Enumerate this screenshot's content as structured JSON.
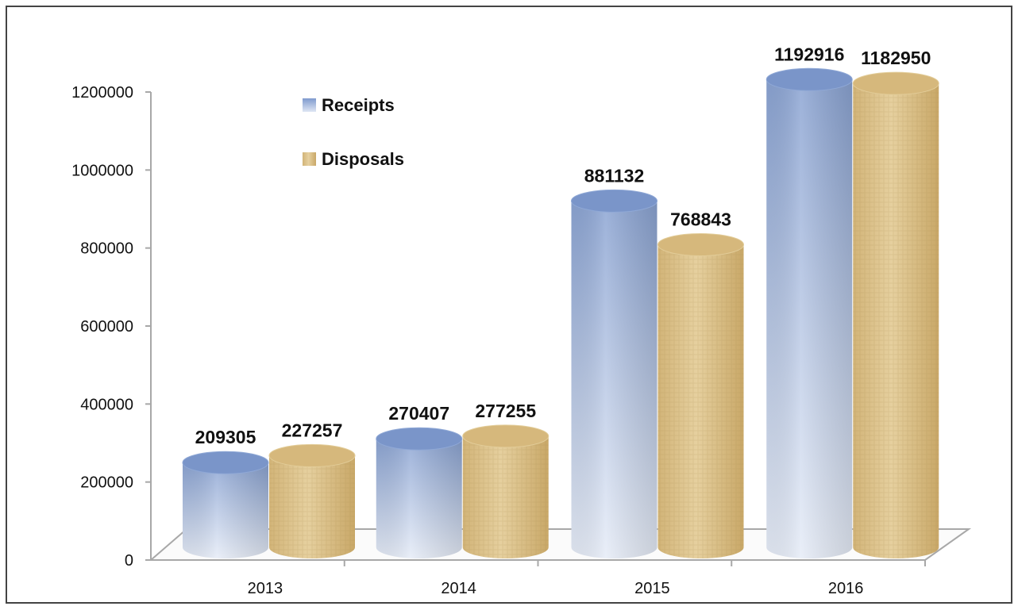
{
  "chart_data": {
    "type": "bar",
    "style": "3d-cylinder",
    "categories": [
      "2013",
      "2014",
      "2015",
      "2016"
    ],
    "series": [
      {
        "name": "Receipts",
        "values": [
          209305,
          270407,
          881132,
          1192916
        ],
        "color": "#8fa8d4"
      },
      {
        "name": "Disposals",
        "values": [
          227257,
          277255,
          768843,
          1182950
        ],
        "color": "#d9bf86"
      }
    ],
    "data_labels": [
      [
        "209305",
        "270407",
        "881132",
        "1192916"
      ],
      [
        "227257",
        "277255",
        "768843",
        "1182950"
      ]
    ],
    "y_ticks": [
      "0",
      "200000",
      "400000",
      "600000",
      "800000",
      "1000000",
      "1200000"
    ],
    "ylim": [
      0,
      1200000
    ],
    "grid": false,
    "legend_placement": "top-left"
  }
}
